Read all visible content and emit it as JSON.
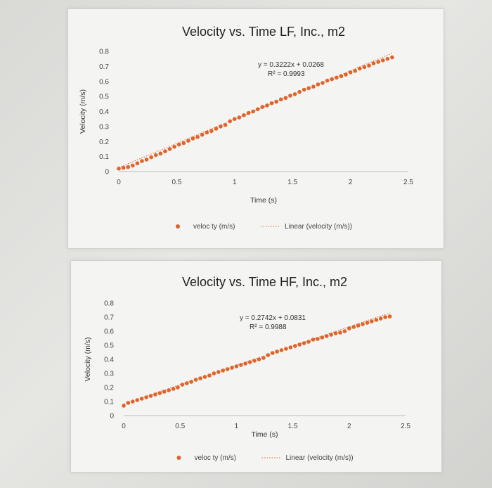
{
  "colors": {
    "marker": "#e0632a",
    "trend": "#e0632a",
    "text": "#333333"
  },
  "chart_data": [
    {
      "type": "scatter",
      "title": "Velocity vs. Time LF, Inc., m2",
      "xlabel": "Time (s)",
      "ylabel": "Velocity (m/s)",
      "xlim": [
        0,
        2.5
      ],
      "ylim": [
        0,
        0.8
      ],
      "x_ticks": [
        "0",
        "0.5",
        "1",
        "1.5",
        "2",
        "2.5"
      ],
      "y_ticks": [
        "0",
        "0.1",
        "0.2",
        "0.3",
        "0.4",
        "0.5",
        "0.6",
        "0.7",
        "0.8"
      ],
      "grid": false,
      "trendline": {
        "slope": 0.3222,
        "intercept": 0.0268,
        "equation": "y = 0.3222x + 0.0268",
        "r2": "R² = 0.9993"
      },
      "legend": {
        "placement": "bottom",
        "marker_label": "veloc ty (m/s)",
        "trend_label": "Linear (velocity (m/s))"
      },
      "series": [
        {
          "points": [
            [
              0.0,
              0.02
            ],
            [
              0.04,
              0.025
            ],
            [
              0.08,
              0.03
            ],
            [
              0.12,
              0.04
            ],
            [
              0.16,
              0.055
            ],
            [
              0.2,
              0.07
            ],
            [
              0.24,
              0.08
            ],
            [
              0.28,
              0.095
            ],
            [
              0.32,
              0.11
            ],
            [
              0.36,
              0.12
            ],
            [
              0.4,
              0.135
            ],
            [
              0.44,
              0.15
            ],
            [
              0.48,
              0.165
            ],
            [
              0.52,
              0.18
            ],
            [
              0.56,
              0.19
            ],
            [
              0.6,
              0.205
            ],
            [
              0.64,
              0.22
            ],
            [
              0.68,
              0.23
            ],
            [
              0.72,
              0.245
            ],
            [
              0.76,
              0.26
            ],
            [
              0.8,
              0.27
            ],
            [
              0.84,
              0.285
            ],
            [
              0.88,
              0.3
            ],
            [
              0.92,
              0.31
            ],
            [
              0.96,
              0.335
            ],
            [
              1.0,
              0.35
            ],
            [
              1.04,
              0.36
            ],
            [
              1.08,
              0.375
            ],
            [
              1.12,
              0.39
            ],
            [
              1.16,
              0.4
            ],
            [
              1.2,
              0.415
            ],
            [
              1.24,
              0.43
            ],
            [
              1.28,
              0.44
            ],
            [
              1.32,
              0.455
            ],
            [
              1.36,
              0.465
            ],
            [
              1.4,
              0.48
            ],
            [
              1.44,
              0.49
            ],
            [
              1.48,
              0.505
            ],
            [
              1.52,
              0.515
            ],
            [
              1.56,
              0.53
            ],
            [
              1.6,
              0.545
            ],
            [
              1.64,
              0.555
            ],
            [
              1.68,
              0.565
            ],
            [
              1.72,
              0.58
            ],
            [
              1.76,
              0.59
            ],
            [
              1.8,
              0.605
            ],
            [
              1.84,
              0.615
            ],
            [
              1.88,
              0.625
            ],
            [
              1.92,
              0.635
            ],
            [
              1.96,
              0.645
            ],
            [
              2.0,
              0.66
            ],
            [
              2.04,
              0.67
            ],
            [
              2.08,
              0.685
            ],
            [
              2.12,
              0.695
            ],
            [
              2.16,
              0.705
            ],
            [
              2.2,
              0.72
            ],
            [
              2.24,
              0.73
            ],
            [
              2.28,
              0.74
            ],
            [
              2.32,
              0.75
            ],
            [
              2.36,
              0.76
            ]
          ]
        }
      ]
    },
    {
      "type": "scatter",
      "title": "Velocity vs. Time HF, Inc., m2",
      "xlabel": "Time (s)",
      "ylabel": "Velocity (m/s)",
      "xlim": [
        0,
        2.5
      ],
      "ylim": [
        0,
        0.8
      ],
      "x_ticks": [
        "0",
        "0.5",
        "1",
        "1.5",
        "2",
        "2.5"
      ],
      "y_ticks": [
        "0",
        "0.1",
        "0.2",
        "0.3",
        "0.4",
        "0.5",
        "0.6",
        "0.7",
        "0.8"
      ],
      "grid": false,
      "trendline": {
        "slope": 0.2742,
        "intercept": 0.0831,
        "equation": "y = 0.2742x + 0.0831",
        "r2": "R² = 0.9988"
      },
      "legend": {
        "placement": "bottom",
        "marker_label": "veloc ty (m/s)",
        "trend_label": "Linear (velocity (m/s))"
      },
      "series": [
        {
          "points": [
            [
              0.0,
              0.07
            ],
            [
              0.04,
              0.09
            ],
            [
              0.08,
              0.1
            ],
            [
              0.12,
              0.11
            ],
            [
              0.16,
              0.12
            ],
            [
              0.2,
              0.13
            ],
            [
              0.24,
              0.14
            ],
            [
              0.28,
              0.15
            ],
            [
              0.32,
              0.16
            ],
            [
              0.36,
              0.17
            ],
            [
              0.4,
              0.18
            ],
            [
              0.44,
              0.19
            ],
            [
              0.48,
              0.2
            ],
            [
              0.52,
              0.22
            ],
            [
              0.56,
              0.23
            ],
            [
              0.6,
              0.24
            ],
            [
              0.64,
              0.255
            ],
            [
              0.68,
              0.265
            ],
            [
              0.72,
              0.275
            ],
            [
              0.76,
              0.285
            ],
            [
              0.8,
              0.3
            ],
            [
              0.84,
              0.31
            ],
            [
              0.88,
              0.32
            ],
            [
              0.92,
              0.33
            ],
            [
              0.96,
              0.34
            ],
            [
              1.0,
              0.35
            ],
            [
              1.04,
              0.36
            ],
            [
              1.08,
              0.37
            ],
            [
              1.12,
              0.38
            ],
            [
              1.16,
              0.39
            ],
            [
              1.2,
              0.4
            ],
            [
              1.24,
              0.41
            ],
            [
              1.28,
              0.43
            ],
            [
              1.32,
              0.445
            ],
            [
              1.36,
              0.455
            ],
            [
              1.4,
              0.465
            ],
            [
              1.44,
              0.475
            ],
            [
              1.48,
              0.485
            ],
            [
              1.52,
              0.495
            ],
            [
              1.56,
              0.505
            ],
            [
              1.6,
              0.515
            ],
            [
              1.64,
              0.525
            ],
            [
              1.68,
              0.54
            ],
            [
              1.72,
              0.545
            ],
            [
              1.76,
              0.555
            ],
            [
              1.8,
              0.565
            ],
            [
              1.84,
              0.575
            ],
            [
              1.88,
              0.585
            ],
            [
              1.92,
              0.59
            ],
            [
              1.96,
              0.6
            ],
            [
              2.0,
              0.62
            ],
            [
              2.04,
              0.63
            ],
            [
              2.08,
              0.64
            ],
            [
              2.12,
              0.65
            ],
            [
              2.16,
              0.66
            ],
            [
              2.2,
              0.67
            ],
            [
              2.24,
              0.68
            ],
            [
              2.28,
              0.69
            ],
            [
              2.32,
              0.7
            ],
            [
              2.36,
              0.705
            ]
          ]
        }
      ]
    }
  ]
}
